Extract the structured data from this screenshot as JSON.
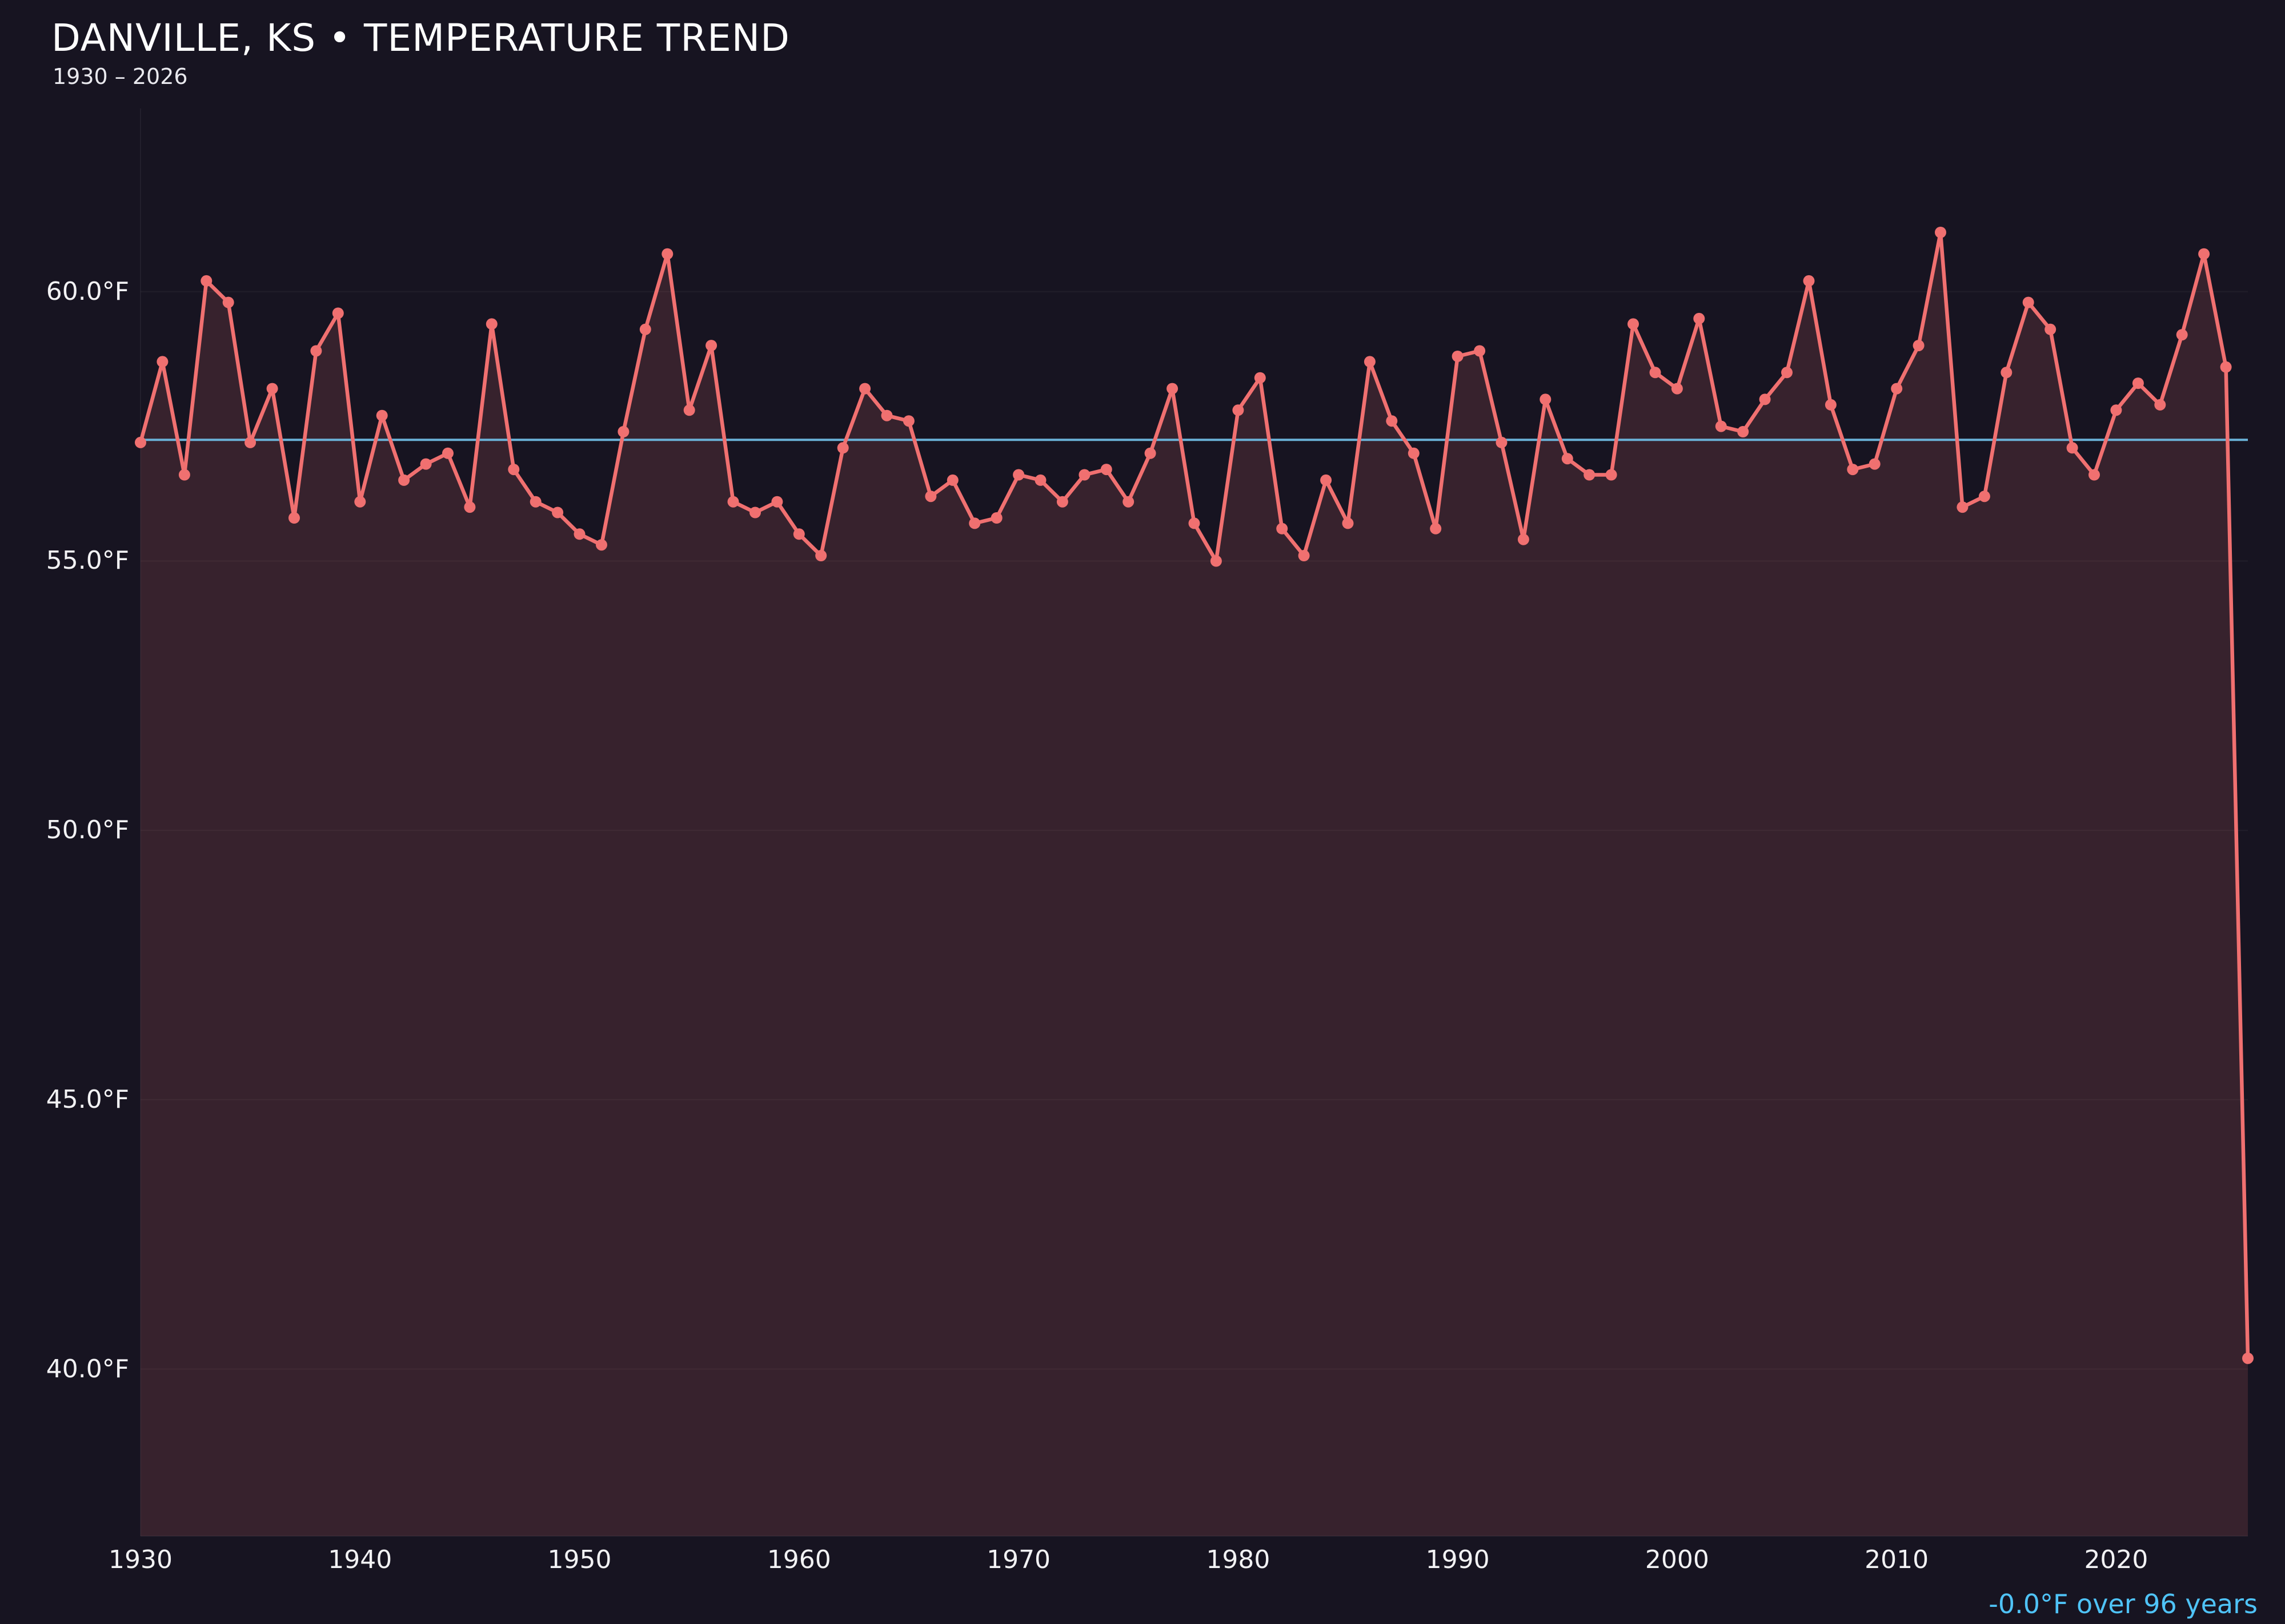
{
  "header": {
    "title": "DANVILLE, KS • TEMPERATURE TREND",
    "subtitle": "1930 – 2026"
  },
  "footer": {
    "trend_summary": "-0.0°F over 96 years"
  },
  "colors": {
    "background": "#171421",
    "line": "#f07070",
    "fill": "rgba(240,112,112,0.15)",
    "trend_line": "#6ab2d8",
    "footer_text": "#4fc3f7",
    "tick_label": "#f2f2f4",
    "grid": "rgba(255,255,255,0.045)"
  },
  "chart_data": {
    "type": "line",
    "title": "DANVILLE, KS • TEMPERATURE TREND",
    "subtitle": "1930 – 2026",
    "series_name": "Annual mean temperature (°F)",
    "xlabel": "",
    "ylabel": "",
    "xlim": [
      1930,
      2026
    ],
    "ylim": [
      36.9,
      63.4
    ],
    "grid": "horizontal-only",
    "legend": "none",
    "marker": "circle",
    "x": [
      1930,
      1931,
      1932,
      1933,
      1934,
      1935,
      1936,
      1937,
      1938,
      1939,
      1940,
      1941,
      1942,
      1943,
      1944,
      1945,
      1946,
      1947,
      1948,
      1949,
      1950,
      1951,
      1952,
      1953,
      1954,
      1955,
      1956,
      1957,
      1958,
      1959,
      1960,
      1961,
      1962,
      1963,
      1964,
      1965,
      1966,
      1967,
      1968,
      1969,
      1970,
      1971,
      1972,
      1973,
      1974,
      1975,
      1976,
      1977,
      1978,
      1979,
      1980,
      1981,
      1982,
      1983,
      1984,
      1985,
      1986,
      1987,
      1988,
      1989,
      1990,
      1991,
      1992,
      1993,
      1994,
      1995,
      1996,
      1997,
      1998,
      1999,
      2000,
      2001,
      2002,
      2003,
      2004,
      2005,
      2006,
      2007,
      2008,
      2009,
      2010,
      2011,
      2012,
      2013,
      2014,
      2015,
      2016,
      2017,
      2018,
      2019,
      2020,
      2021,
      2022,
      2023,
      2024,
      2025,
      2026
    ],
    "values": [
      57.2,
      58.7,
      56.6,
      60.2,
      59.8,
      57.2,
      58.2,
      55.8,
      58.9,
      59.6,
      56.1,
      57.7,
      56.5,
      56.8,
      57.0,
      56.0,
      59.4,
      56.7,
      56.1,
      55.9,
      55.5,
      55.3,
      57.4,
      59.3,
      60.7,
      57.8,
      59.0,
      56.1,
      55.9,
      56.1,
      55.5,
      55.1,
      57.1,
      58.2,
      57.7,
      57.6,
      56.2,
      56.5,
      55.7,
      55.8,
      56.6,
      56.5,
      56.1,
      56.6,
      56.7,
      56.1,
      57.0,
      58.2,
      55.7,
      55.0,
      57.8,
      58.4,
      55.6,
      55.1,
      56.5,
      55.7,
      58.7,
      57.6,
      57.0,
      55.6,
      58.8,
      58.9,
      57.2,
      55.4,
      58.0,
      56.9,
      56.6,
      56.6,
      59.4,
      58.5,
      58.2,
      59.5,
      57.5,
      57.4,
      58.0,
      58.5,
      60.2,
      57.9,
      56.7,
      56.8,
      58.2,
      59.0,
      61.1,
      56.0,
      56.2,
      58.5,
      59.8,
      59.3,
      57.1,
      56.6,
      57.8,
      58.3,
      57.9,
      59.2,
      60.7,
      58.6,
      40.2
    ],
    "trend_line": {
      "type": "flat-horizontal",
      "value": 57.25,
      "label": "-0.0°F over 96 years"
    },
    "y_ticks": [
      {
        "value": 40,
        "label": "40.0°F"
      },
      {
        "value": 45,
        "label": "45.0°F"
      },
      {
        "value": 50,
        "label": "50.0°F"
      },
      {
        "value": 55,
        "label": "55.0°F"
      },
      {
        "value": 60,
        "label": "60.0°F"
      }
    ],
    "x_ticks": [
      {
        "value": 1930,
        "label": "1930"
      },
      {
        "value": 1940,
        "label": "1940"
      },
      {
        "value": 1950,
        "label": "1950"
      },
      {
        "value": 1960,
        "label": "1960"
      },
      {
        "value": 1970,
        "label": "1970"
      },
      {
        "value": 1980,
        "label": "1980"
      },
      {
        "value": 1990,
        "label": "1990"
      },
      {
        "value": 2000,
        "label": "2000"
      },
      {
        "value": 2010,
        "label": "2010"
      },
      {
        "value": 2020,
        "label": "2020"
      }
    ]
  }
}
